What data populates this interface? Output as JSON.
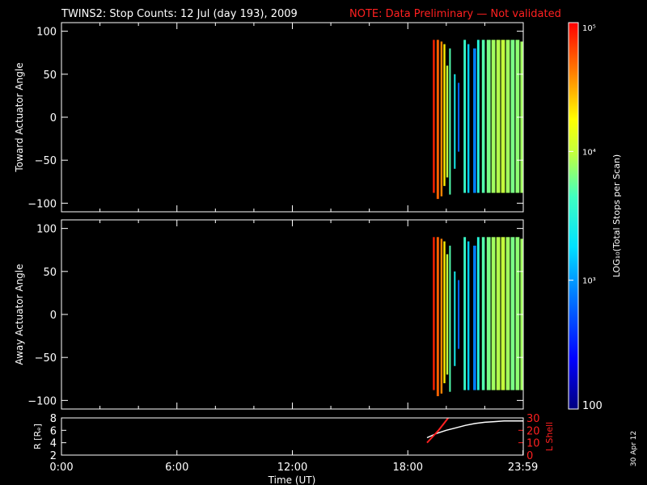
{
  "title": "TWINS2: Stop Counts: 12 Jul (day 193), 2009",
  "note": "NOTE: Data Preliminary — Not validated",
  "date_stamp": "30 Apr 12",
  "colors": {
    "background": "#000000",
    "axes": "#ffffff",
    "note": "#ff2020",
    "r_line": "#ffffff",
    "lshell_line": "#ff2020"
  },
  "chart_data": [
    {
      "type": "heatmap",
      "ylabel": "Toward Actuator Angle",
      "xlim": [
        0,
        24
      ],
      "ylim": [
        -110,
        110
      ],
      "yticks": [
        100,
        50,
        0,
        -50,
        -100
      ],
      "ytick_labels": [
        "100",
        "50",
        "0",
        "−50",
        "−100"
      ],
      "scale": "log",
      "bands": [
        {
          "t": 19.3,
          "w": 0.1,
          "ymin": -88,
          "ymax": 90,
          "log": 4.9
        },
        {
          "t": 19.5,
          "w": 0.12,
          "ymin": -95,
          "ymax": 90,
          "log": 4.7
        },
        {
          "t": 19.7,
          "w": 0.1,
          "ymin": -92,
          "ymax": 88,
          "log": 4.6
        },
        {
          "t": 19.85,
          "w": 0.1,
          "ymin": -80,
          "ymax": 85,
          "log": 4.3
        },
        {
          "t": 20.0,
          "w": 0.1,
          "ymin": -70,
          "ymax": 60,
          "log": 4.0
        },
        {
          "t": 20.15,
          "w": 0.08,
          "ymin": -90,
          "ymax": 80,
          "log": 3.7
        },
        {
          "t": 20.4,
          "w": 0.06,
          "ymin": -60,
          "ymax": 50,
          "log": 3.4
        },
        {
          "t": 20.6,
          "w": 0.06,
          "ymin": -40,
          "ymax": 40,
          "log": 2.8
        },
        {
          "t": 20.9,
          "w": 0.12,
          "ymin": -88,
          "ymax": 90,
          "log": 3.6
        },
        {
          "t": 21.1,
          "w": 0.1,
          "ymin": -88,
          "ymax": 85,
          "log": 3.2
        },
        {
          "t": 21.4,
          "w": 0.15,
          "ymin": -88,
          "ymax": 80,
          "log": 2.9
        },
        {
          "t": 21.6,
          "w": 0.12,
          "ymin": -88,
          "ymax": 90,
          "log": 3.5
        },
        {
          "t": 21.85,
          "w": 0.15,
          "ymin": -88,
          "ymax": 90,
          "log": 3.7
        },
        {
          "t": 22.1,
          "w": 0.2,
          "ymin": -88,
          "ymax": 90,
          "log": 3.8
        },
        {
          "t": 22.35,
          "w": 0.2,
          "ymin": -88,
          "ymax": 90,
          "log": 3.9
        },
        {
          "t": 22.6,
          "w": 0.2,
          "ymin": -88,
          "ymax": 90,
          "log": 3.95
        },
        {
          "t": 22.85,
          "w": 0.2,
          "ymin": -88,
          "ymax": 90,
          "log": 4.0
        },
        {
          "t": 23.1,
          "w": 0.2,
          "ymin": -88,
          "ymax": 90,
          "log": 3.9
        },
        {
          "t": 23.35,
          "w": 0.2,
          "ymin": -88,
          "ymax": 90,
          "log": 3.8
        },
        {
          "t": 23.6,
          "w": 0.2,
          "ymin": -88,
          "ymax": 90,
          "log": 3.85
        },
        {
          "t": 23.85,
          "w": 0.15,
          "ymin": -88,
          "ymax": 88,
          "log": 3.9
        }
      ]
    },
    {
      "type": "heatmap",
      "ylabel": "Away Actuator Angle",
      "xlim": [
        0,
        24
      ],
      "ylim": [
        -110,
        110
      ],
      "yticks": [
        100,
        50,
        0,
        -50,
        -100
      ],
      "ytick_labels": [
        "100",
        "50",
        "0",
        "−50",
        "−100"
      ],
      "scale": "log",
      "bands": [
        {
          "t": 19.3,
          "w": 0.1,
          "ymin": -88,
          "ymax": 90,
          "log": 4.9
        },
        {
          "t": 19.5,
          "w": 0.12,
          "ymin": -95,
          "ymax": 90,
          "log": 4.7
        },
        {
          "t": 19.7,
          "w": 0.1,
          "ymin": -92,
          "ymax": 88,
          "log": 4.6
        },
        {
          "t": 19.85,
          "w": 0.1,
          "ymin": -80,
          "ymax": 85,
          "log": 4.3
        },
        {
          "t": 20.0,
          "w": 0.1,
          "ymin": -70,
          "ymax": 70,
          "log": 4.0
        },
        {
          "t": 20.15,
          "w": 0.08,
          "ymin": -90,
          "ymax": 80,
          "log": 3.7
        },
        {
          "t": 20.4,
          "w": 0.06,
          "ymin": -60,
          "ymax": 50,
          "log": 3.4
        },
        {
          "t": 20.6,
          "w": 0.06,
          "ymin": -40,
          "ymax": 40,
          "log": 2.8
        },
        {
          "t": 20.9,
          "w": 0.12,
          "ymin": -88,
          "ymax": 90,
          "log": 3.6
        },
        {
          "t": 21.1,
          "w": 0.1,
          "ymin": -88,
          "ymax": 85,
          "log": 3.2
        },
        {
          "t": 21.4,
          "w": 0.15,
          "ymin": -88,
          "ymax": 80,
          "log": 2.9
        },
        {
          "t": 21.6,
          "w": 0.12,
          "ymin": -88,
          "ymax": 90,
          "log": 3.5
        },
        {
          "t": 21.85,
          "w": 0.15,
          "ymin": -88,
          "ymax": 90,
          "log": 3.7
        },
        {
          "t": 22.1,
          "w": 0.2,
          "ymin": -88,
          "ymax": 90,
          "log": 3.8
        },
        {
          "t": 22.35,
          "w": 0.2,
          "ymin": -88,
          "ymax": 90,
          "log": 3.9
        },
        {
          "t": 22.6,
          "w": 0.2,
          "ymin": -88,
          "ymax": 90,
          "log": 3.95
        },
        {
          "t": 22.85,
          "w": 0.2,
          "ymin": -88,
          "ymax": 90,
          "log": 4.0
        },
        {
          "t": 23.1,
          "w": 0.2,
          "ymin": -88,
          "ymax": 90,
          "log": 3.9
        },
        {
          "t": 23.35,
          "w": 0.2,
          "ymin": -88,
          "ymax": 90,
          "log": 3.8
        },
        {
          "t": 23.6,
          "w": 0.2,
          "ymin": -88,
          "ymax": 90,
          "log": 3.85
        },
        {
          "t": 23.85,
          "w": 0.15,
          "ymin": -88,
          "ymax": 88,
          "log": 3.9
        }
      ]
    },
    {
      "type": "line",
      "ylabel": "R [Rₑ]",
      "y2label": "L Shell",
      "xlabel": "Time (UT)",
      "xlim": [
        0,
        24
      ],
      "xticks": [
        0,
        6,
        12,
        18,
        23.983
      ],
      "xtick_labels": [
        "0:00",
        "6:00",
        "12:00",
        "18:00",
        "23:59"
      ],
      "ylim": [
        2,
        8
      ],
      "yticks": [
        8,
        6,
        4,
        2
      ],
      "y2lim": [
        0,
        30
      ],
      "y2ticks": [
        30,
        20,
        10,
        0
      ],
      "series": [
        {
          "name": "R",
          "axis": "left",
          "x": [
            19.0,
            19.5,
            20.0,
            20.5,
            21.0,
            21.5,
            22.0,
            22.5,
            23.0,
            23.5,
            24.0
          ],
          "y": [
            4.8,
            5.5,
            6.0,
            6.4,
            6.8,
            7.1,
            7.3,
            7.4,
            7.5,
            7.5,
            7.5
          ]
        },
        {
          "name": "L Shell",
          "axis": "right",
          "x": [
            19.0,
            19.3,
            19.6,
            19.9,
            20.1
          ],
          "y": [
            10,
            15,
            20,
            26,
            30
          ]
        }
      ]
    },
    {
      "type": "colorbar",
      "label": "LOG₁₀(Total Stops per Scan)",
      "scale": "log",
      "range": [
        100,
        100000
      ],
      "tick_labels": [
        {
          "value": 100000,
          "text": "10⁵"
        },
        {
          "value": 10000,
          "text": "10⁴"
        },
        {
          "value": 1000,
          "text": "10³"
        },
        {
          "value": 100,
          "text": "100"
        }
      ]
    }
  ]
}
